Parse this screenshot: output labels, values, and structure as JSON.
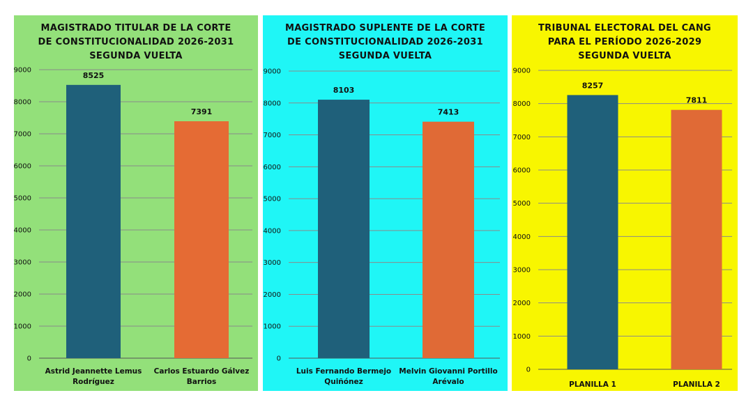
{
  "chart_data": [
    {
      "type": "bar",
      "title": "MAGISTRADO TITULAR DE LA CORTE DE CONSTITUCIONALIDAD 2026-2031 SEGUNDA VUELTA",
      "categories": [
        [
          "Astrid Jeannette Lemus",
          "Rodríguez"
        ],
        [
          "Carlos Estuardo Gálvez",
          "Barrios"
        ]
      ],
      "values": [
        8525,
        7391
      ],
      "ylim": [
        0,
        9000
      ],
      "yticks": [
        0,
        1000,
        2000,
        3000,
        4000,
        5000,
        6000,
        7000,
        8000,
        9000
      ],
      "grid": true,
      "background": "#93e07a",
      "bar_colors": [
        "#1f607a",
        "#e56b34"
      ]
    },
    {
      "type": "bar",
      "title": "MAGISTRADO SUPLENTE DE LA CORTE DE CONSTITUCIONALIDAD 2026-2031 SEGUNDA VUELTA",
      "categories": [
        [
          "Luis Fernando Bermejo",
          "Quiñónez"
        ],
        [
          "Melvin Giovanni Portillo",
          "Arévalo"
        ]
      ],
      "values": [
        8103,
        7413
      ],
      "ylim": [
        0,
        9000
      ],
      "yticks": [
        0,
        1000,
        2000,
        3000,
        4000,
        5000,
        6000,
        7000,
        8000,
        9000
      ],
      "grid": true,
      "background": "#1ff6f6",
      "bar_colors": [
        "#1f607a",
        "#e06a36"
      ]
    },
    {
      "type": "bar",
      "title": "TRIBUNAL ELECTORAL DEL CANG PARA EL PERÍODO 2026-2029 SEGUNDA VUELTA",
      "categories": [
        [
          "PLANILLA 1"
        ],
        [
          "PLANILLA 2"
        ]
      ],
      "values": [
        8257,
        7811
      ],
      "ylim": [
        0,
        9000
      ],
      "yticks": [
        0,
        1000,
        2000,
        3000,
        4000,
        5000,
        6000,
        7000,
        8000,
        9000
      ],
      "grid": true,
      "background": "#f8f600",
      "bar_colors": [
        "#1f607a",
        "#e06a36"
      ]
    }
  ]
}
